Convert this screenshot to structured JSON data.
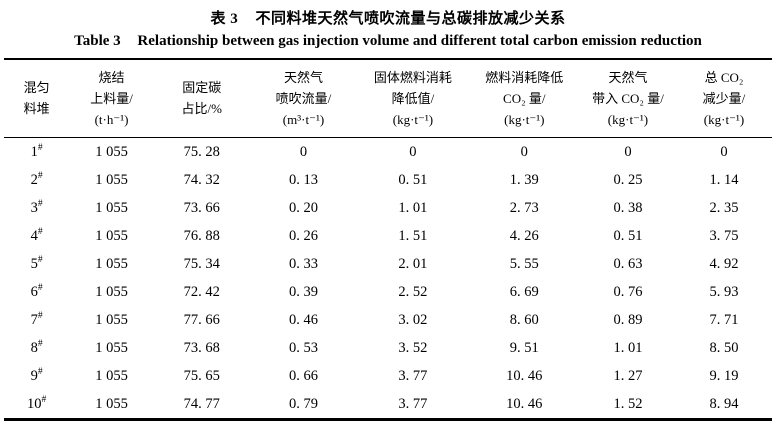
{
  "page": {
    "background_color": "#ffffff",
    "text_color": "#000000",
    "rule_color": "#000000"
  },
  "caption": {
    "zh_label": "表 3",
    "zh_text": "不同料堆天然气喷吹流量与总碳排放减少关系",
    "en_label": "Table 3",
    "en_text": "Relationship between gas injection volume and different total carbon emission reduction"
  },
  "table": {
    "pile_mark": "#",
    "columns": [
      {
        "name": "mixed-pile",
        "lines": [
          "混匀",
          "料堆"
        ]
      },
      {
        "name": "sinter-feed",
        "lines": [
          "烧结",
          "上料量/",
          "(t·h⁻¹)"
        ]
      },
      {
        "name": "fixed-carbon",
        "lines": [
          "固定碳",
          "占比/%"
        ]
      },
      {
        "name": "gas-injection-flow",
        "lines": [
          "天然气",
          "喷吹流量/",
          "(m³·t⁻¹)"
        ]
      },
      {
        "name": "solid-fuel-reduction",
        "lines": [
          "固体燃料消耗",
          "降低值/",
          "(kg·t⁻¹)"
        ]
      },
      {
        "name": "fuel-co2-reduction",
        "lines": [
          "燃料消耗降低",
          "CO₂ 量/",
          "(kg·t⁻¹)"
        ]
      },
      {
        "name": "gas-co2-input",
        "lines": [
          "天然气",
          "带入 CO₂ 量/",
          "(kg·t⁻¹)"
        ]
      },
      {
        "name": "total-co2-reduction",
        "lines": [
          "总 CO₂",
          "减少量/",
          "(kg·t⁻¹)"
        ]
      }
    ],
    "rows": [
      {
        "pile": "1",
        "values": [
          "1 055",
          "75. 28",
          "0",
          "0",
          "0",
          "0",
          "0"
        ]
      },
      {
        "pile": "2",
        "values": [
          "1 055",
          "74. 32",
          "0. 13",
          "0. 51",
          "1. 39",
          "0. 25",
          "1. 14"
        ]
      },
      {
        "pile": "3",
        "values": [
          "1 055",
          "73. 66",
          "0. 20",
          "1. 01",
          "2. 73",
          "0. 38",
          "2. 35"
        ]
      },
      {
        "pile": "4",
        "values": [
          "1 055",
          "76. 88",
          "0. 26",
          "1. 51",
          "4. 26",
          "0. 51",
          "3. 75"
        ]
      },
      {
        "pile": "5",
        "values": [
          "1 055",
          "75. 34",
          "0. 33",
          "2. 01",
          "5. 55",
          "0. 63",
          "4. 92"
        ]
      },
      {
        "pile": "6",
        "values": [
          "1 055",
          "72. 42",
          "0. 39",
          "2. 52",
          "6. 69",
          "0. 76",
          "5. 93"
        ]
      },
      {
        "pile": "7",
        "values": [
          "1 055",
          "77. 66",
          "0. 46",
          "3. 02",
          "8. 60",
          "0. 89",
          "7. 71"
        ]
      },
      {
        "pile": "8",
        "values": [
          "1 055",
          "73. 68",
          "0. 53",
          "3. 52",
          "9. 51",
          "1. 01",
          "8. 50"
        ]
      },
      {
        "pile": "9",
        "values": [
          "1 055",
          "75. 65",
          "0. 66",
          "3. 77",
          "10. 46",
          "1. 27",
          "9. 19"
        ]
      },
      {
        "pile": "10",
        "values": [
          "1 055",
          "74. 77",
          "0. 79",
          "3. 77",
          "10. 46",
          "1. 52",
          "8. 94"
        ]
      }
    ]
  }
}
